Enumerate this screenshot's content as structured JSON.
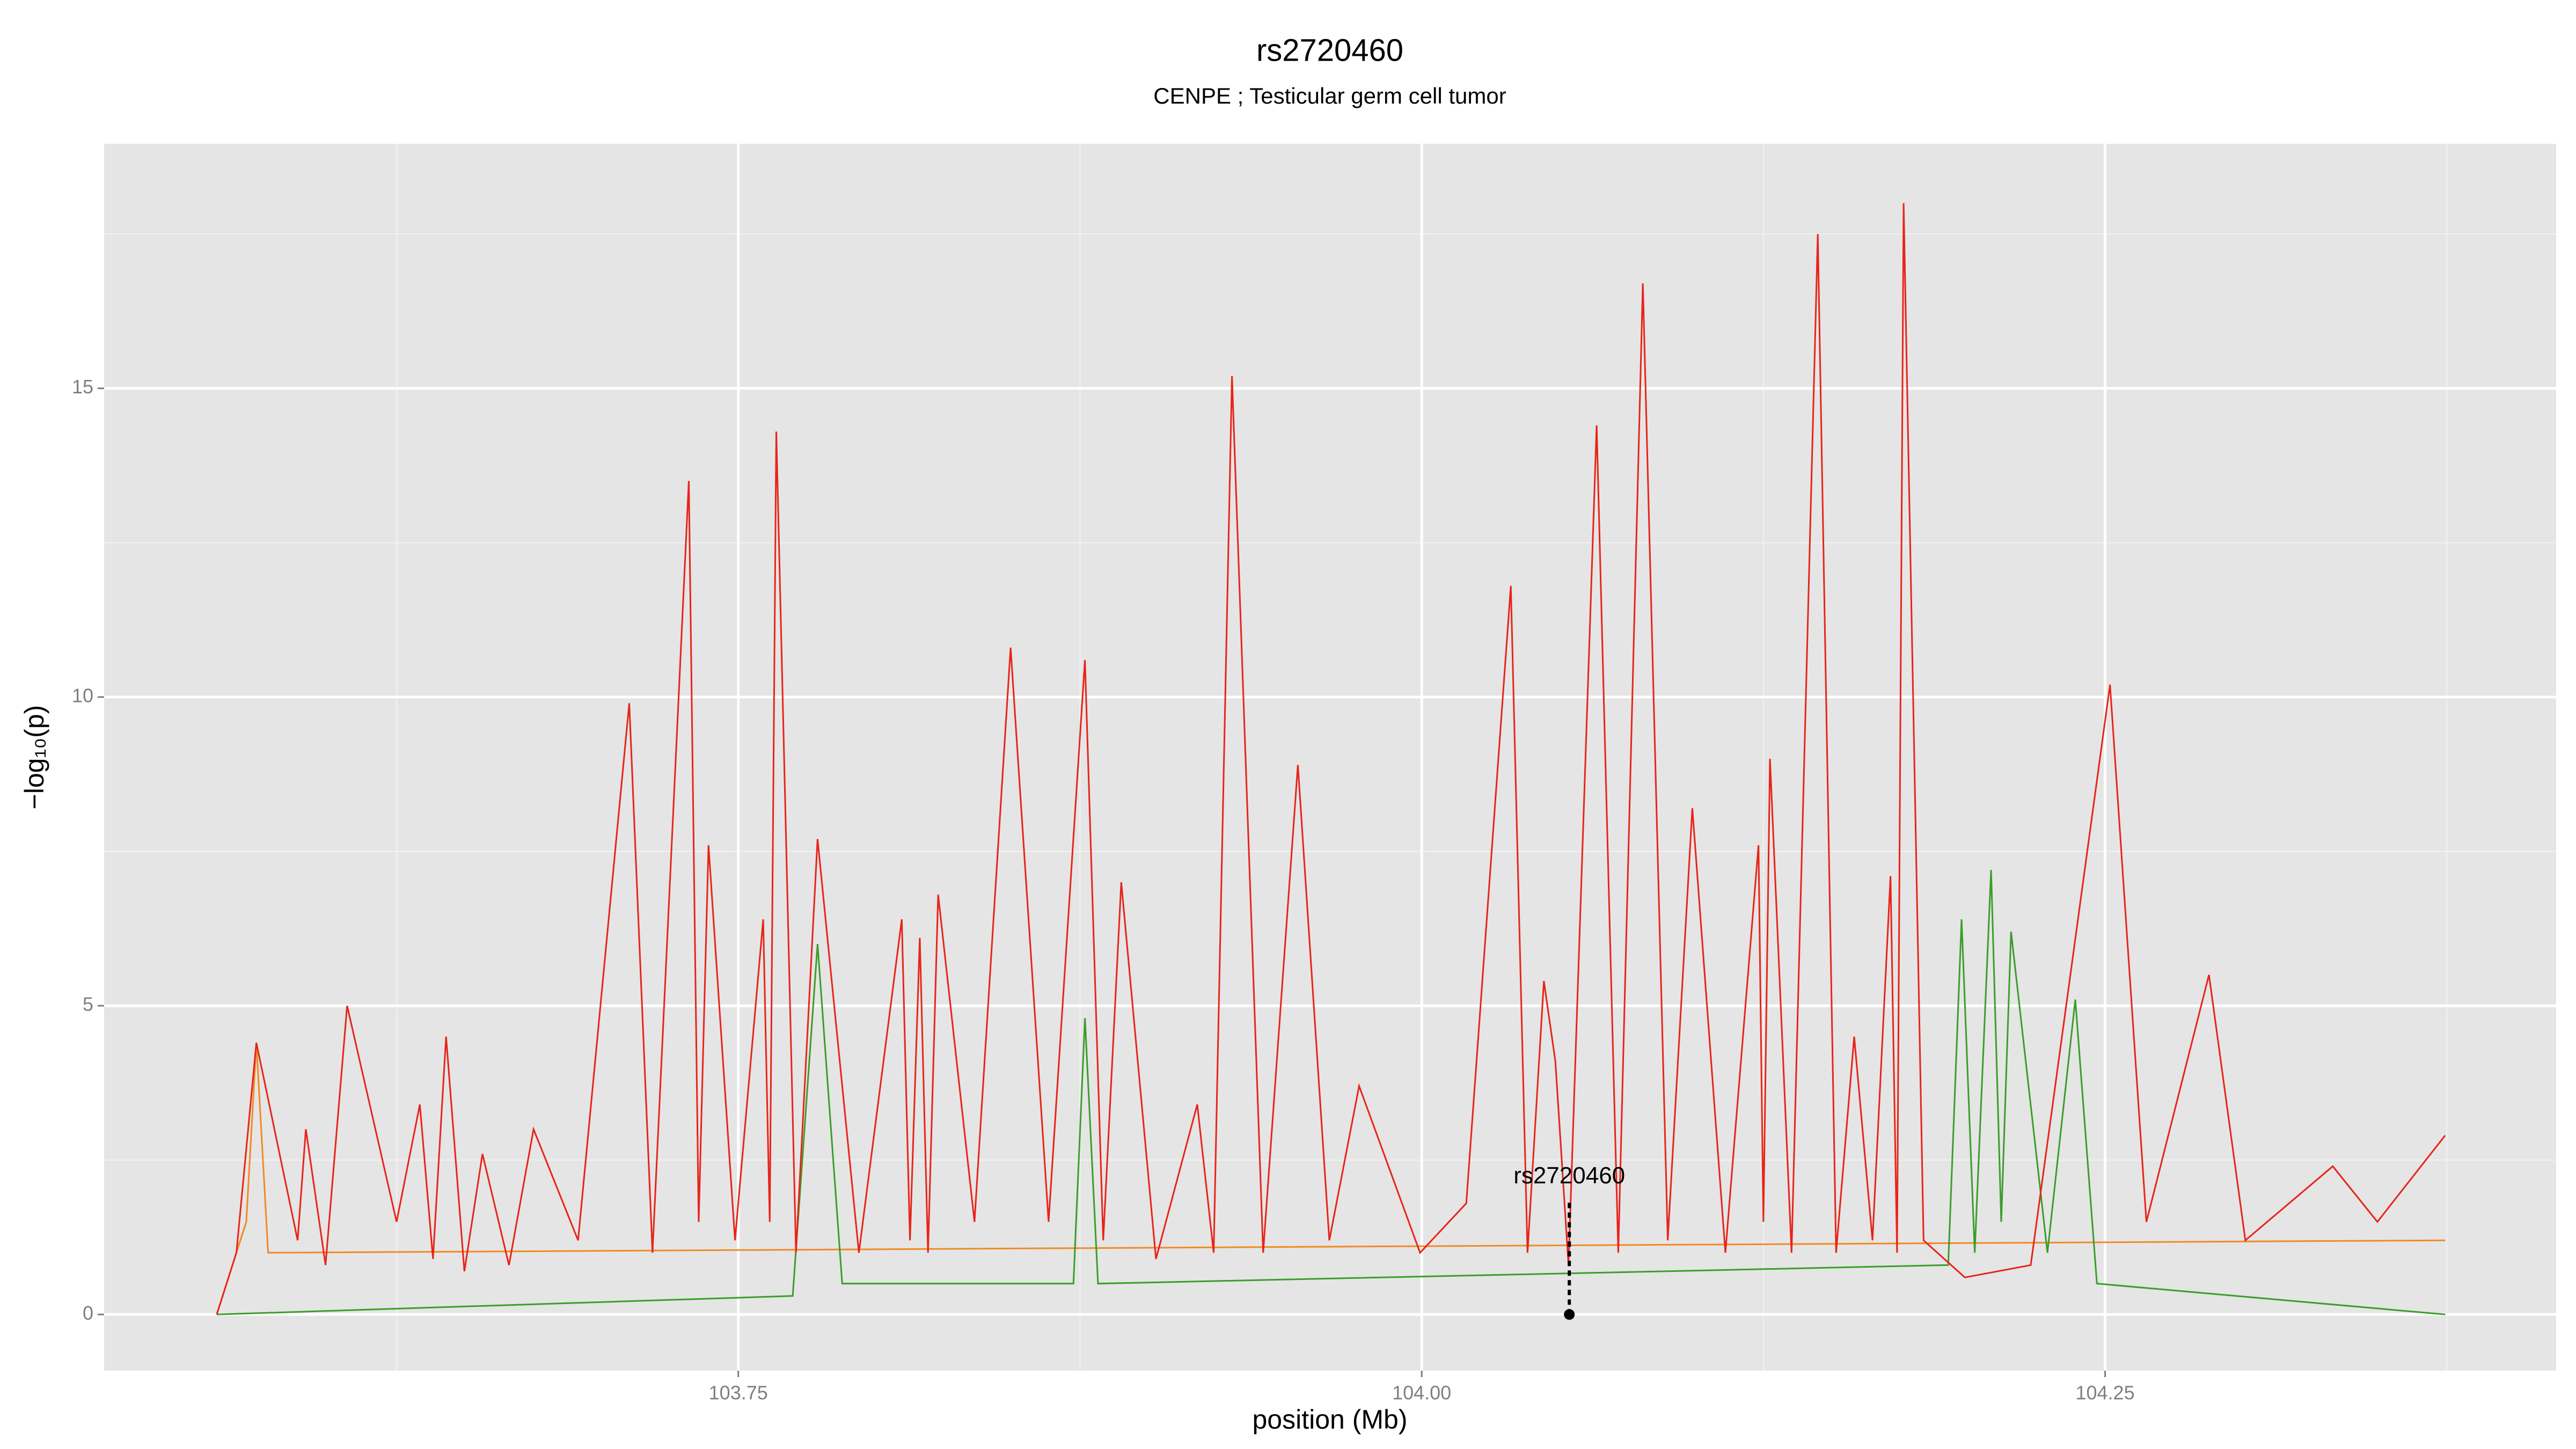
{
  "chart_data": {
    "type": "line",
    "title": "rs2720460",
    "subtitle": "CENPE ; Testicular germ cell tumor",
    "x_label": "position (Mb)",
    "y_label": "−log₁₀(p)",
    "xlim": [
      103.518,
      104.415
    ],
    "ylim": [
      -0.91,
      18.96
    ],
    "xticks": [
      103.75,
      {
        "value": 104,
        "label": "104.00"
      },
      104.25
    ],
    "yticks": [
      0,
      5,
      10,
      15
    ],
    "x_minor_ticks": [
      103.625,
      103.875,
      104.125,
      104.375
    ],
    "y_minor_ticks": [
      2.5,
      7.5,
      12.5,
      17.5
    ],
    "grid": true,
    "background": "#e5e5e5",
    "series": [
      {
        "name": "orange",
        "color": "#f08a24",
        "x": [
          103.5592,
          103.57,
          103.5737,
          103.578,
          104.3744
        ],
        "values": [
          0,
          1.5,
          4.4,
          1.0,
          1.2
        ]
      },
      {
        "name": "green",
        "color": "#3a9e2a",
        "x": [
          103.5592,
          103.7699,
          103.779,
          103.788,
          103.8726,
          103.8768,
          103.8816,
          104.1926,
          104.1975,
          104.2023,
          104.2083,
          104.212,
          104.2156,
          104.2289,
          104.2391,
          104.247,
          104.3744
        ],
        "values": [
          0,
          0.3,
          6.0,
          0.5,
          0.5,
          4.8,
          0.5,
          0.8,
          6.4,
          1.0,
          7.2,
          1.5,
          6.2,
          1.0,
          5.1,
          0.5,
          0
        ]
      },
      {
        "name": "red",
        "color": "#e8241a",
        "x": [
          103.5592,
          103.5664,
          103.5737,
          103.5888,
          103.5918,
          103.599,
          103.6069,
          103.625,
          103.6335,
          103.6383,
          103.6431,
          103.6498,
          103.6564,
          103.6661,
          103.6751,
          103.6914,
          103.7101,
          103.7186,
          103.7319,
          103.7355,
          103.7391,
          103.7488,
          103.7591,
          103.7615,
          103.7639,
          103.7711,
          103.779,
          103.7941,
          103.8098,
          103.8128,
          103.8164,
          103.8194,
          103.8231,
          103.8364,
          103.8496,
          103.8635,
          103.8768,
          103.8835,
          103.8901,
          103.9028,
          103.9179,
          103.9239,
          103.9306,
          103.942,
          103.9547,
          103.9662,
          103.9771,
          103.9994,
          104.0163,
          104.0326,
          104.0387,
          104.0447,
          104.0489,
          104.0537,
          104.064,
          104.0719,
          104.0809,
          104.09,
          104.099,
          104.1111,
          104.1232,
          104.125,
          104.1274,
          104.1353,
          104.1449,
          104.1516,
          104.1582,
          104.1649,
          104.1715,
          104.1739,
          104.1763,
          104.1836,
          104.1987,
          104.2228,
          104.2518,
          104.2651,
          104.288,
          104.3013,
          104.3333,
          104.3496,
          104.3744
        ],
        "values": [
          0,
          1.0,
          4.4,
          1.2,
          3.0,
          0.8,
          5.0,
          1.5,
          3.4,
          0.9,
          4.5,
          0.7,
          2.6,
          0.8,
          3.0,
          1.2,
          9.9,
          1.0,
          13.5,
          1.5,
          7.6,
          1.2,
          6.4,
          1.5,
          14.3,
          1.0,
          7.7,
          1.0,
          6.4,
          1.2,
          6.1,
          1.0,
          6.8,
          1.5,
          10.8,
          1.5,
          10.6,
          1.2,
          7.0,
          0.9,
          3.4,
          1.0,
          15.2,
          1.0,
          8.9,
          1.2,
          3.7,
          1.0,
          1.8,
          11.8,
          1.0,
          5.4,
          4.1,
          0.8,
          14.4,
          1.0,
          16.7,
          1.2,
          8.2,
          1.0,
          7.6,
          1.5,
          9.0,
          1.0,
          17.5,
          1.0,
          4.5,
          1.2,
          7.1,
          1.0,
          18.0,
          1.2,
          0.6,
          0.8,
          10.2,
          1.5,
          5.5,
          1.2,
          2.4,
          1.5,
          2.9
        ]
      }
    ],
    "annotations": [
      {
        "text": "rs2720460",
        "x": 104.054,
        "y": 0
      }
    ]
  }
}
